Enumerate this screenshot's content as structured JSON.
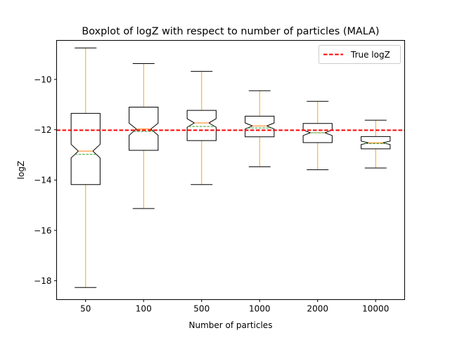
{
  "chart_data": {
    "type": "boxplot",
    "title": "Boxplot of logZ with respect to number of particles (MALA)",
    "xlabel": "Number of particles",
    "ylabel": "logZ",
    "categories": [
      "50",
      "100",
      "500",
      "1000",
      "2000",
      "10000"
    ],
    "ylim": [
      -18.75,
      -8.45
    ],
    "yticks": [
      -18,
      -16,
      -14,
      -12,
      -10
    ],
    "ytick_labels": [
      "−18",
      "−16",
      "−14",
      "−12",
      "−10"
    ],
    "notched": true,
    "boxes": [
      {
        "whisker_low": -18.27,
        "q1": -14.18,
        "median": -12.85,
        "mean": -12.98,
        "q3": -11.35,
        "whisker_high": -8.75,
        "notch_low": -13.12,
        "notch_high": -12.58
      },
      {
        "whisker_low": -15.13,
        "q1": -12.82,
        "median": -11.97,
        "mean": -12.07,
        "q3": -11.1,
        "whisker_high": -9.37,
        "notch_low": -12.22,
        "notch_high": -11.74
      },
      {
        "whisker_low": -14.18,
        "q1": -12.43,
        "median": -11.73,
        "mean": -11.87,
        "q3": -11.23,
        "whisker_high": -9.68,
        "notch_low": -11.9,
        "notch_high": -11.56
      },
      {
        "whisker_low": -13.47,
        "q1": -12.28,
        "median": -11.85,
        "mean": -11.93,
        "q3": -11.46,
        "whisker_high": -10.45,
        "notch_low": -11.97,
        "notch_high": -11.73
      },
      {
        "whisker_low": -13.59,
        "q1": -12.51,
        "median": -12.12,
        "mean": -12.12,
        "q3": -11.75,
        "whisker_high": -10.87,
        "notch_low": -12.23,
        "notch_high": -12.01
      },
      {
        "whisker_low": -13.52,
        "q1": -12.76,
        "median": -12.52,
        "mean": -12.55,
        "q3": -12.27,
        "whisker_high": -11.62,
        "notch_low": -12.59,
        "notch_high": -12.45
      }
    ],
    "reference_line": {
      "label": "True logZ",
      "value": -12.02,
      "color": "#ff0000",
      "style": "dashed"
    },
    "legend": {
      "placement": "top-right",
      "entries": [
        "True logZ"
      ]
    },
    "colors": {
      "box": "#000000",
      "whisker": "#ffa500",
      "median": "#ff7f0e",
      "mean": "#2ca02c",
      "reference": "#ff0000"
    },
    "grid": false
  }
}
